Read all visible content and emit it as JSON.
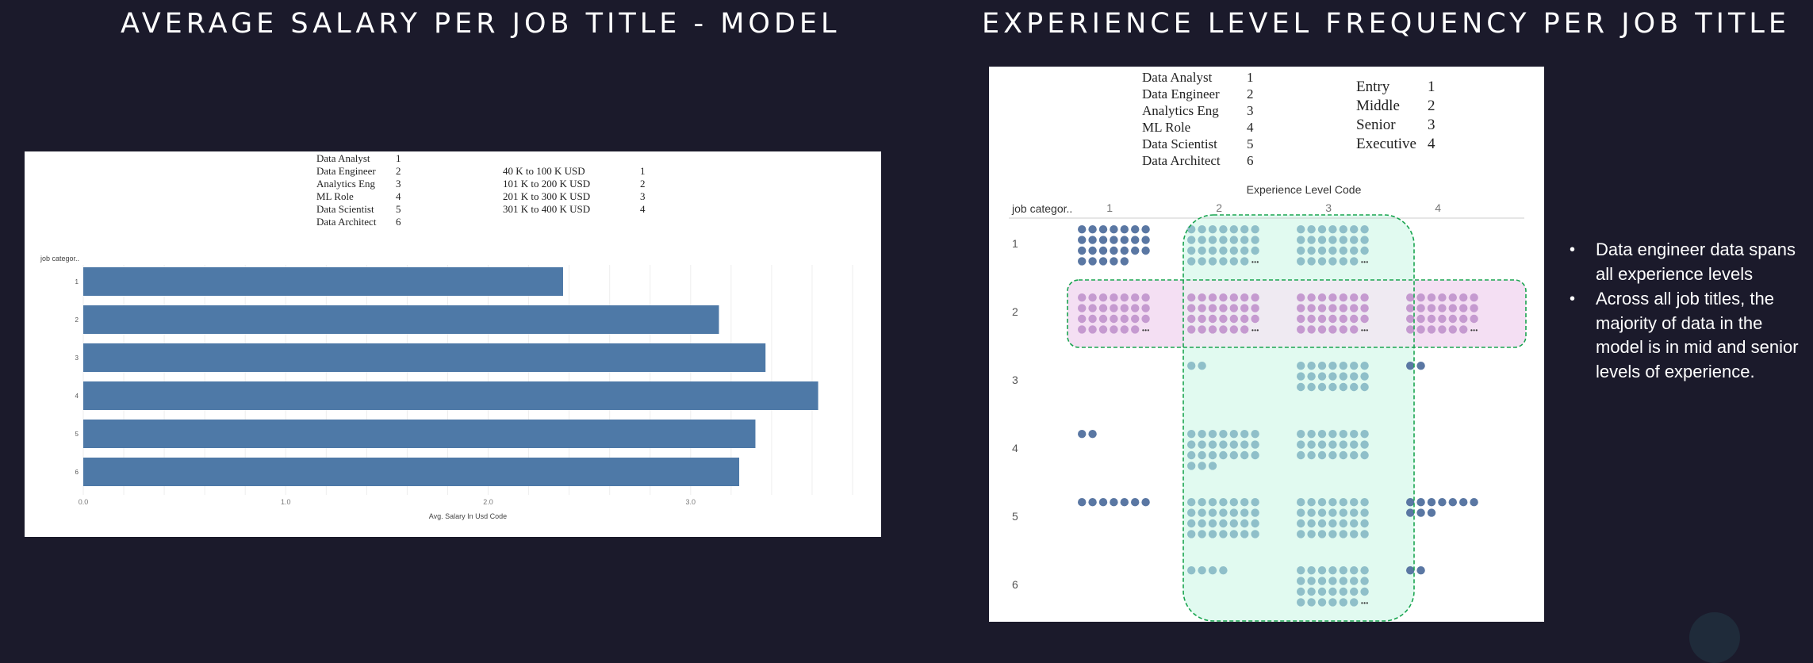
{
  "titles": {
    "left": "AVERAGE SALARY PER JOB TITLE - MODEL",
    "right": "EXPERIENCE LEVEL FREQUENCY PER JOB TITLE"
  },
  "left_chart": {
    "job_legend": [
      {
        "label": "Data Analyst",
        "code": "1"
      },
      {
        "label": "Data Engineer",
        "code": "2"
      },
      {
        "label": "Analytics Eng",
        "code": "3"
      },
      {
        "label": "ML Role",
        "code": "4"
      },
      {
        "label": "Data Scientist",
        "code": "5"
      },
      {
        "label": "Data Architect",
        "code": "6"
      }
    ],
    "salary_legend": [
      {
        "label": "40 K to 100 K USD",
        "code": "1"
      },
      {
        "label": "101 K to 200 K USD",
        "code": "2"
      },
      {
        "label": "201 K to 300 K USD",
        "code": "3"
      },
      {
        "label": "301 K to 400 K USD",
        "code": "4"
      }
    ]
  },
  "right_chart": {
    "job_legend": [
      {
        "label": "Data Analyst",
        "code": "1"
      },
      {
        "label": "Data Engineer",
        "code": "2"
      },
      {
        "label": "Analytics Eng",
        "code": "3"
      },
      {
        "label": "ML Role",
        "code": "4"
      },
      {
        "label": "Data Scientist",
        "code": "5"
      },
      {
        "label": "Data Architect",
        "code": "6"
      }
    ],
    "level_legend": [
      {
        "label": "Entry",
        "code": "1"
      },
      {
        "label": "Middle",
        "code": "2"
      },
      {
        "label": "Senior",
        "code": "3"
      },
      {
        "label": "Executive",
        "code": "4"
      }
    ]
  },
  "notes": [
    "Data engineer data spans all experience levels",
    "Across all job titles, the majority of data in the model is in mid and senior levels of experience."
  ],
  "chart_data": [
    {
      "type": "bar",
      "orientation": "horizontal",
      "title": "",
      "xlabel": "Avg. Salary In Usd Code",
      "ylabel": "job categor..",
      "categories": [
        "1",
        "2",
        "3",
        "4",
        "5",
        "6"
      ],
      "values": [
        2.37,
        3.14,
        3.37,
        3.63,
        3.32,
        3.24
      ],
      "xlim": [
        0,
        3.8
      ],
      "xticks": [
        "0.0",
        "1.0",
        "2.0",
        "3.0"
      ],
      "color": "#4e79a7",
      "grid": true
    },
    {
      "type": "scatter",
      "subtype": "dot-matrix",
      "title": "",
      "xlabel": "Experience Level Code",
      "ylabel": "job categor..",
      "columns": [
        "1",
        "2",
        "3",
        "4"
      ],
      "rows": [
        "1",
        "2",
        "3",
        "4",
        "5",
        "6"
      ],
      "counts": [
        [
          26,
          28,
          28,
          0
        ],
        [
          28,
          28,
          28,
          28
        ],
        [
          0,
          2,
          21,
          2
        ],
        [
          2,
          24,
          21,
          0
        ],
        [
          7,
          28,
          28,
          10
        ],
        [
          0,
          4,
          28,
          2
        ]
      ],
      "truncated": [
        [
          false,
          true,
          true,
          false
        ],
        [
          true,
          true,
          true,
          true
        ],
        [
          false,
          false,
          false,
          false
        ],
        [
          false,
          false,
          false,
          false
        ],
        [
          false,
          false,
          false,
          false
        ],
        [
          false,
          false,
          true,
          false
        ]
      ],
      "colors": {
        "entry_exec_dots": "#5a77a3",
        "mid_senior_dots": "#8fbfc9",
        "highlight_row_dots": "#c59ad0",
        "highlight_row_fill": "#f4dff3",
        "highlight_col_fill": "#e1faf0",
        "highlight_border": "#1aa550"
      },
      "highlights": {
        "row": "2",
        "columns": [
          "2",
          "3"
        ]
      }
    }
  ]
}
